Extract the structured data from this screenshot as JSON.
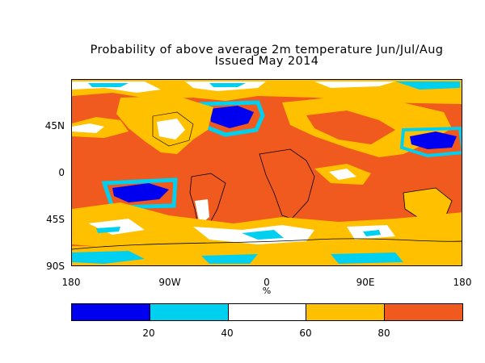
{
  "title_line1": "Probability of above average 2m temperature Jun/Jul/Aug",
  "title_line2": "Issued May 2014",
  "y_axis_labels": [
    "45N",
    "0",
    "45S",
    "90S"
  ],
  "x_axis_labels": [
    "180",
    "90W",
    "0",
    "90E",
    "180"
  ],
  "x_unit": "%",
  "colorbar": {
    "colors": [
      "#0000f0",
      "#00d0f0",
      "#ffffff",
      "#ffc000",
      "#f05a1e"
    ],
    "labels": [
      "20",
      "40",
      "60",
      "80"
    ]
  },
  "map_colors": {
    "very_high": "#f05a1e",
    "high": "#ffc000",
    "neutral": "#ffffff",
    "low": "#00d0f0",
    "very_low": "#0000f0",
    "borders": "#000000"
  }
}
